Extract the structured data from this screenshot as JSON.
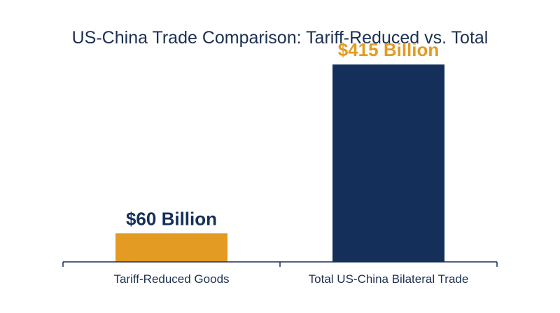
{
  "chart_data": {
    "type": "bar",
    "title": "US-China Trade Comparison: Tariff-Reduced vs. Total",
    "xlabel": "",
    "ylabel": "",
    "categories": [
      "Tariff-Reduced Goods",
      "Total US-China Bilateral Trade"
    ],
    "values": [
      60,
      415
    ],
    "value_labels": [
      "$60 Billion",
      "$415 Billion"
    ],
    "bar_colors": [
      "#e39b23",
      "#142f59"
    ],
    "value_label_colors": [
      "#142f59",
      "#e39b23"
    ],
    "ylim": [
      0,
      480
    ],
    "grid": false,
    "legend": "none"
  },
  "colors": {
    "axis": "#142f59",
    "title": "#1c3050",
    "background": "#ffffff"
  }
}
